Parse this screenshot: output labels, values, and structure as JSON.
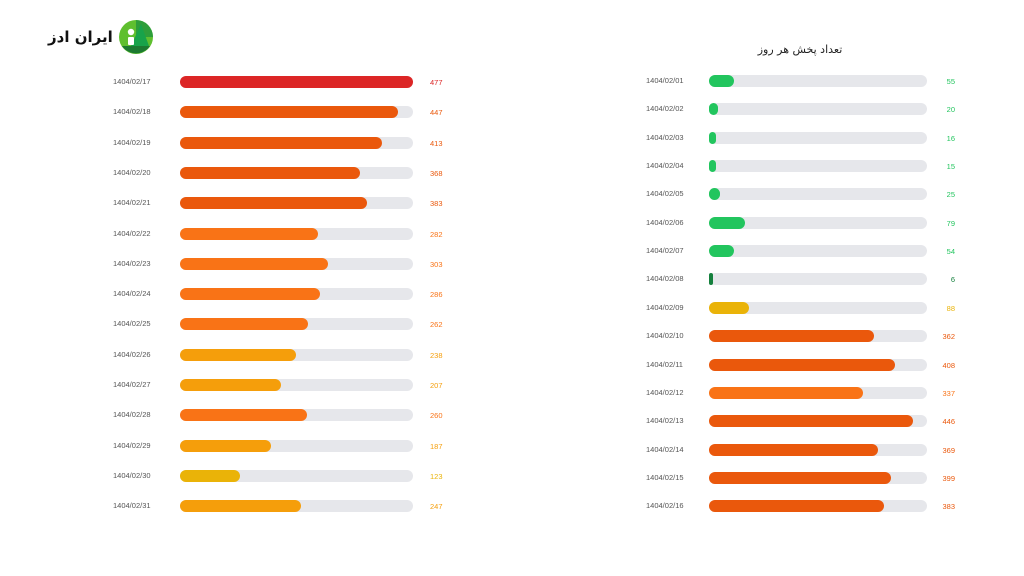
{
  "logo": {
    "text": "ایران ادز",
    "icon": "iranads-logo-icon"
  },
  "title": "تعداد پخش هر روز",
  "colors": {
    "track": "#e6e7eb",
    "red": "#dc2626",
    "dark_orange": "#ea580c",
    "orange": "#f97316",
    "amber": "#f59e0b",
    "yellow": "#eab308",
    "green": "#22c55e",
    "dark_green": "#15803d"
  },
  "chart_data": {
    "type": "bar",
    "orientation": "horizontal",
    "title": "تعداد پخش هر روز",
    "xlabel": "",
    "ylabel": "",
    "max": 477,
    "grid": false,
    "panels": [
      {
        "position": "left",
        "categories": [
          "1404/02/17",
          "1404/02/18",
          "1404/02/19",
          "1404/02/20",
          "1404/02/21",
          "1404/02/22",
          "1404/02/23",
          "1404/02/24",
          "1404/02/25",
          "1404/02/26",
          "1404/02/27",
          "1404/02/28",
          "1404/02/29",
          "1404/02/30",
          "1404/02/31"
        ],
        "values": [
          477,
          447,
          413,
          368,
          383,
          282,
          303,
          286,
          262,
          238,
          207,
          260,
          187,
          123,
          247
        ],
        "colors": [
          "red",
          "dark_orange",
          "dark_orange",
          "dark_orange",
          "dark_orange",
          "orange",
          "orange",
          "orange",
          "orange",
          "amber",
          "amber",
          "orange",
          "amber",
          "yellow",
          "amber"
        ]
      },
      {
        "position": "right",
        "categories": [
          "1404/02/01",
          "1404/02/02",
          "1404/02/03",
          "1404/02/04",
          "1404/02/05",
          "1404/02/06",
          "1404/02/07",
          "1404/02/08",
          "1404/02/09",
          "1404/02/10",
          "1404/02/11",
          "1404/02/12",
          "1404/02/13",
          "1404/02/14",
          "1404/02/15",
          "1404/02/16"
        ],
        "values": [
          55,
          20,
          16,
          15,
          25,
          79,
          54,
          6,
          88,
          362,
          408,
          337,
          446,
          369,
          399,
          383
        ],
        "colors": [
          "green",
          "green",
          "green",
          "green",
          "green",
          "green",
          "green",
          "dark_green",
          "yellow",
          "dark_orange",
          "dark_orange",
          "orange",
          "dark_orange",
          "dark_orange",
          "dark_orange",
          "dark_orange"
        ]
      }
    ]
  }
}
